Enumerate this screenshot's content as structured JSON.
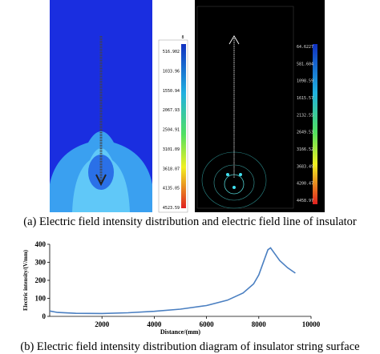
{
  "panel_a": {
    "left_scale": {
      "top_label": "8",
      "labels": [
        "516.902",
        "1033.96",
        "1550.94",
        "2067.93",
        "2504.91",
        "3101.09",
        "3618.07",
        "4135.05",
        "4523.59"
      ]
    },
    "right_scale": {
      "labels": [
        "64.6227",
        "581.604",
        "1098.59",
        "1615.57",
        "2132.55",
        "2649.53",
        "3166.52",
        "3683.49",
        "4200.47",
        "4458.97"
      ]
    },
    "caption": "(a) Electric field intensity distribution and electric field line of insulator"
  },
  "chart_data": {
    "type": "line",
    "x_label": "Distance/(mm)",
    "y_label": "Electric intensity/(V/mm)",
    "x": [
      0,
      300,
      1000,
      2000,
      3000,
      4000,
      5000,
      6000,
      6800,
      7400,
      7800,
      8000,
      8200,
      8350,
      8450,
      8600,
      8800,
      9100,
      9400
    ],
    "series": [
      {
        "name": "Electric intensity",
        "color": "#4a7fc1",
        "values": [
          30,
          22,
          17,
          16,
          20,
          28,
          40,
          60,
          90,
          130,
          180,
          230,
          310,
          370,
          380,
          350,
          310,
          270,
          240
        ]
      }
    ],
    "xlim": [
      0,
      10000
    ],
    "ylim": [
      0,
      400
    ],
    "xticks": [
      2000,
      4000,
      6000,
      8000,
      10000
    ],
    "yticks": [
      0,
      100,
      200,
      300,
      400
    ]
  },
  "panel_b": {
    "caption": "(b) Electric field intensity distribution diagram of insulator string surface"
  }
}
